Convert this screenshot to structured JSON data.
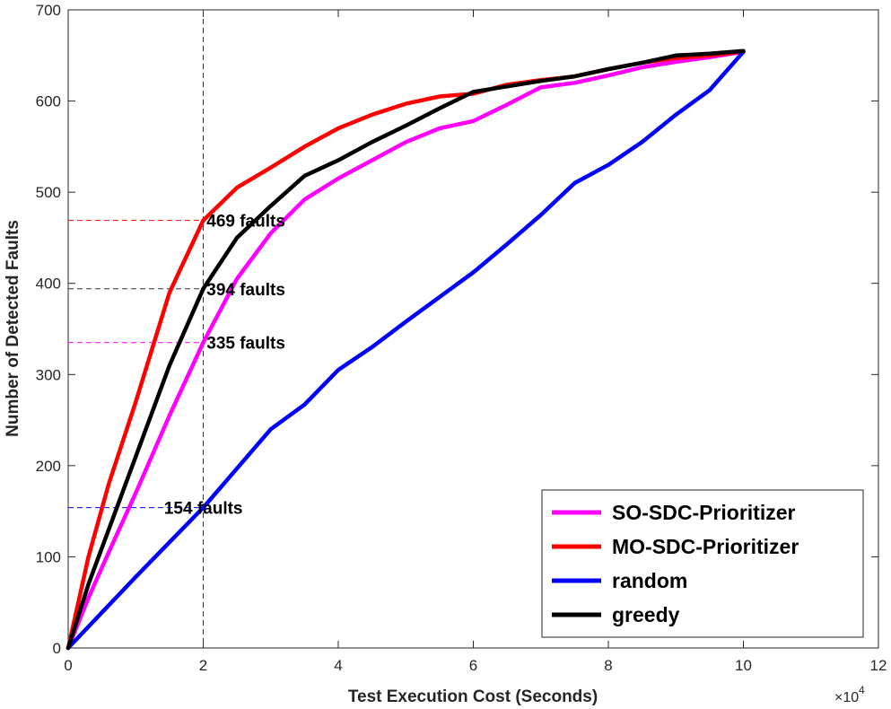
{
  "chart_data": {
    "type": "line",
    "xlabel": "Test Execution Cost (Seconds)",
    "ylabel": "Number of Detected Faults",
    "x_multiplier": {
      "base": "×10",
      "exponent": "4"
    },
    "xlim": [
      0,
      12
    ],
    "ylim": [
      0,
      700
    ],
    "xticks": [
      0,
      2,
      4,
      6,
      8,
      10,
      12
    ],
    "yticks": [
      0,
      100,
      200,
      300,
      400,
      500,
      600,
      700
    ],
    "grid": false,
    "legend_position": "bottom-right",
    "series": [
      {
        "name": "SO-SDC-Prioritizer",
        "color": "#ff00ff",
        "x": [
          0,
          0.3,
          0.6,
          1.0,
          1.5,
          2.0,
          2.5,
          3.0,
          3.5,
          4.0,
          4.5,
          5.0,
          5.5,
          6.0,
          6.5,
          7.0,
          7.5,
          8.0,
          8.5,
          9.0,
          9.5,
          10.0
        ],
        "y": [
          0,
          55,
          105,
          170,
          255,
          335,
          405,
          455,
          492,
          515,
          535,
          555,
          570,
          578,
          596,
          615,
          620,
          628,
          637,
          643,
          648,
          654
        ]
      },
      {
        "name": "MO-SDC-Prioritizer",
        "color": "#ff0000",
        "x": [
          0,
          0.3,
          0.6,
          1.0,
          1.5,
          2.0,
          2.5,
          3.0,
          3.5,
          4.0,
          4.5,
          5.0,
          5.5,
          6.0,
          6.5,
          7.0,
          7.5,
          8.0,
          8.5,
          9.0,
          9.5,
          10.0
        ],
        "y": [
          0,
          100,
          180,
          270,
          390,
          469,
          505,
          527,
          550,
          570,
          585,
          597,
          605,
          608,
          618,
          623,
          627,
          635,
          642,
          647,
          650,
          654
        ]
      },
      {
        "name": "random",
        "color": "#0000ff",
        "x": [
          0,
          1.0,
          2.0,
          3.0,
          3.5,
          4.0,
          4.5,
          5.0,
          5.5,
          6.0,
          6.5,
          7.0,
          7.5,
          8.0,
          8.5,
          9.0,
          9.5,
          10.0
        ],
        "y": [
          0,
          78,
          154,
          240,
          267,
          305,
          330,
          358,
          385,
          412,
          443,
          475,
          510,
          530,
          555,
          585,
          612,
          654
        ]
      },
      {
        "name": "greedy",
        "color": "#000000",
        "x": [
          0,
          0.3,
          0.6,
          1.0,
          1.5,
          2.0,
          2.5,
          3.0,
          3.5,
          4.0,
          4.5,
          5.0,
          5.5,
          6.0,
          6.5,
          7.0,
          7.5,
          8.0,
          8.5,
          9.0,
          9.5,
          10.0
        ],
        "y": [
          0,
          70,
          130,
          210,
          310,
          394,
          450,
          485,
          518,
          535,
          555,
          573,
          592,
          610,
          616,
          622,
          627,
          635,
          642,
          650,
          652,
          655
        ]
      }
    ],
    "reference_lines": [
      {
        "type": "vertical",
        "x": 2,
        "color": "#333333"
      },
      {
        "type": "horizontal",
        "y": 469,
        "x_end": 2,
        "color": "#ff0000"
      },
      {
        "type": "horizontal",
        "y": 394,
        "x_end": 2,
        "color": "#333333"
      },
      {
        "type": "horizontal",
        "y": 335,
        "x_end": 2,
        "color": "#ff00ff"
      },
      {
        "type": "horizontal",
        "y": 154,
        "x_end": 2,
        "color": "#0000ff"
      }
    ],
    "annotations": [
      {
        "text": "469 faults",
        "x": 2.05,
        "y": 469
      },
      {
        "text": "394 faults",
        "x": 2.05,
        "y": 394
      },
      {
        "text": "335 faults",
        "x": 2.05,
        "y": 335
      },
      {
        "text": "154 faults",
        "x": 1.42,
        "y": 154
      }
    ]
  }
}
